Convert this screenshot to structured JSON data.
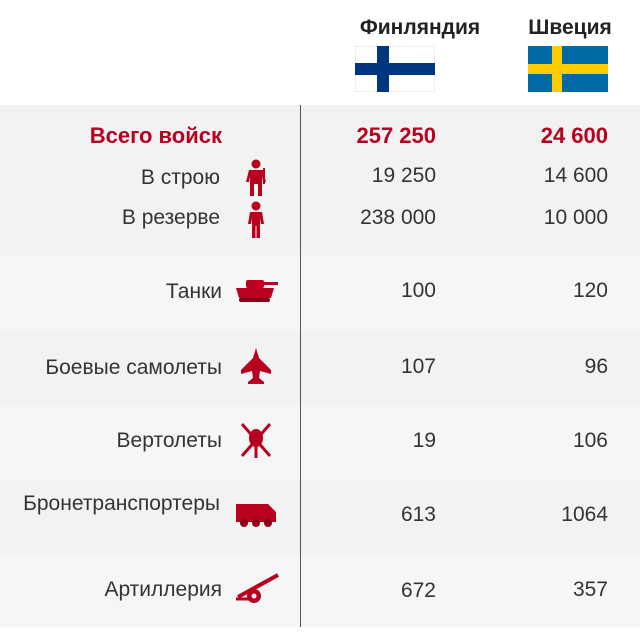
{
  "chart_data": {
    "type": "table",
    "columns": [
      "Финляндия",
      "Швеция"
    ],
    "rows": [
      {
        "label": "Всего войск",
        "icon": "",
        "values": [
          "257 250",
          "24 600"
        ],
        "emphasis": true
      },
      {
        "label": "В строю",
        "icon": "soldier-icon",
        "values": [
          "19 250",
          "14 600"
        ]
      },
      {
        "label": "В резерве",
        "icon": "reservist-icon",
        "values": [
          "238 000",
          "10 000"
        ]
      },
      {
        "label": "Танки",
        "icon": "tank-icon",
        "values": [
          "100",
          "120"
        ]
      },
      {
        "label": "Боевые самолеты",
        "icon": "fighter-jet-icon",
        "values": [
          "107",
          "96"
        ]
      },
      {
        "label": "Вертолеты",
        "icon": "helicopter-icon",
        "values": [
          "19",
          "106"
        ]
      },
      {
        "label": "Бронетранспортеры",
        "icon": "armored-vehicle-icon",
        "values": [
          "613",
          "1064"
        ]
      },
      {
        "label": "Артиллерия",
        "icon": "artillery-icon",
        "values": [
          "672",
          "357"
        ]
      }
    ]
  },
  "header": {
    "finland": "Финляндия",
    "sweden": "Швеция"
  },
  "colors": {
    "accent": "#b8001f",
    "band": "#f2f2f2",
    "finland_blue": "#003580",
    "sweden_blue": "#006aa7",
    "sweden_yellow": "#fecc00"
  }
}
